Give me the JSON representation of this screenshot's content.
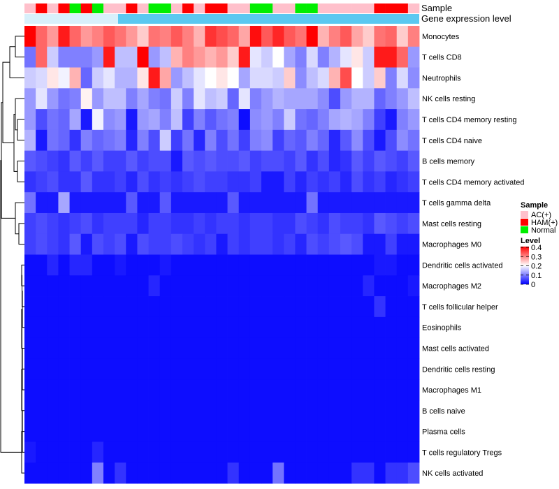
{
  "chart_data": {
    "type": "heatmap",
    "annotation_labels": {
      "sample": "Sample",
      "gene_expression": "Gene expression level"
    },
    "sample_groups": [
      "AC(+)",
      "HAM(+)",
      "AC(+)",
      "HAM(+)",
      "Normal",
      "HAM(+)",
      "Normal",
      "AC(+)",
      "AC(+)",
      "HAM(+)",
      "AC(+)",
      "Normal",
      "Normal",
      "AC(+)",
      "HAM(+)",
      "AC(+)",
      "HAM(+)",
      "HAM(+)",
      "AC(+)",
      "AC(+)",
      "Normal",
      "Normal",
      "AC(+)",
      "AC(+)",
      "Normal",
      "Normal",
      "AC(+)",
      "AC(+)",
      "AC(+)",
      "AC(+)",
      "AC(+)",
      "HAM(+)",
      "HAM(+)",
      "HAM(+)",
      "AC(+)"
    ],
    "rows": [
      {
        "name": "Monocytes",
        "values": [
          0.4,
          0.32,
          0.28,
          0.38,
          0.32,
          0.28,
          0.3,
          0.33,
          0.31,
          0.28,
          0.24,
          0.31,
          0.3,
          0.33,
          0.3,
          0.26,
          0.36,
          0.34,
          0.32,
          0.27,
          0.39,
          0.33,
          0.37,
          0.33,
          0.31,
          0.41,
          0.26,
          0.3,
          0.33,
          0.27,
          0.24,
          0.31,
          0.32,
          0.24,
          0.3
        ]
      },
      {
        "name": "T cells CD8",
        "values": [
          0.09,
          0.32,
          0.16,
          0.1,
          0.1,
          0.1,
          0.12,
          0.38,
          0.15,
          0.15,
          0.4,
          0.12,
          0.15,
          0.26,
          0.3,
          0.28,
          0.26,
          0.28,
          0.24,
          0.38,
          0.18,
          0.16,
          0.2,
          0.13,
          0.1,
          0.17,
          0.1,
          0.14,
          0.18,
          0.22,
          0.16,
          0.38,
          0.38,
          0.32,
          0.12
        ]
      },
      {
        "name": "Neutrophils",
        "values": [
          0.16,
          0.17,
          0.22,
          0.19,
          0.26,
          0.08,
          0.16,
          0.18,
          0.14,
          0.14,
          0.22,
          0.38,
          0.27,
          0.12,
          0.15,
          0.18,
          0.2,
          0.22,
          0.2,
          0.13,
          0.17,
          0.17,
          0.16,
          0.24,
          0.11,
          0.15,
          0.17,
          0.26,
          0.34,
          0.2,
          0.16,
          0.24,
          0.1,
          0.17,
          0.11
        ]
      },
      {
        "name": "NK cells resting",
        "values": [
          0.12,
          0.18,
          0.12,
          0.09,
          0.1,
          0.21,
          0.12,
          0.15,
          0.15,
          0.1,
          0.13,
          0.1,
          0.09,
          0.16,
          0.1,
          0.18,
          0.15,
          0.16,
          0.08,
          0.18,
          0.1,
          0.12,
          0.14,
          0.13,
          0.13,
          0.13,
          0.11,
          0.06,
          0.12,
          0.14,
          0.14,
          0.08,
          0.1,
          0.12,
          0.15
        ]
      },
      {
        "name": "T cells CD4 memory resting",
        "values": [
          0.12,
          0.06,
          0.09,
          0.08,
          0.13,
          0.02,
          0.19,
          0.11,
          0.12,
          0.02,
          0.12,
          0.13,
          0.1,
          0.15,
          0.05,
          0.1,
          0.07,
          0.09,
          0.1,
          0.01,
          0.11,
          0.12,
          0.1,
          0.16,
          0.09,
          0.08,
          0.1,
          0.13,
          0.14,
          0.13,
          0.1,
          0.05,
          0.02,
          0.1,
          0.12
        ]
      },
      {
        "name": "T cells CD4 naive",
        "values": [
          0.14,
          0.02,
          0.09,
          0.08,
          0.04,
          0.1,
          0.08,
          0.09,
          0.1,
          0.03,
          0.1,
          0.06,
          0.16,
          0.05,
          0.09,
          0.03,
          0.1,
          0.06,
          0.09,
          0.05,
          0.1,
          0.11,
          0.05,
          0.08,
          0.07,
          0.1,
          0.08,
          0.03,
          0.07,
          0.11,
          0.06,
          0.02,
          0.06,
          0.11,
          0.09
        ]
      },
      {
        "name": "B cells memory",
        "values": [
          0.07,
          0.06,
          0.05,
          0.04,
          0.07,
          0.05,
          0.07,
          0.05,
          0.05,
          0.07,
          0.05,
          0.06,
          0.06,
          0.02,
          0.07,
          0.06,
          0.07,
          0.06,
          0.06,
          0.07,
          0.05,
          0.06,
          0.06,
          0.05,
          0.07,
          0.04,
          0.06,
          0.03,
          0.04,
          0.07,
          0.05,
          0.07,
          0.06,
          0.05,
          0.07
        ]
      },
      {
        "name": "T cells CD4 memory activated",
        "values": [
          0.04,
          0.05,
          0.06,
          0.04,
          0.04,
          0.07,
          0.04,
          0.04,
          0.05,
          0.03,
          0.06,
          0.04,
          0.05,
          0.04,
          0.05,
          0.06,
          0.05,
          0.05,
          0.04,
          0.04,
          0.05,
          0.02,
          0.02,
          0.05,
          0.03,
          0.05,
          0.04,
          0.05,
          0.03,
          0.06,
          0.04,
          0.05,
          0.03,
          0.04,
          0.05
        ]
      },
      {
        "name": "T cells gamma delta",
        "values": [
          0.09,
          0.02,
          0.02,
          0.13,
          0.02,
          0.02,
          0.02,
          0.02,
          0.02,
          0.07,
          0.02,
          0.02,
          0.07,
          0.02,
          0.02,
          0.02,
          0.02,
          0.02,
          0.07,
          0.02,
          0.02,
          0.02,
          0.02,
          0.02,
          0.02,
          0.09,
          0.02,
          0.02,
          0.02,
          0.02,
          0.02,
          0.02,
          0.02,
          0.02,
          0.02
        ]
      },
      {
        "name": "Mast cells resting",
        "values": [
          0.05,
          0.06,
          0.05,
          0.04,
          0.05,
          0.06,
          0.04,
          0.05,
          0.05,
          0.05,
          0.03,
          0.05,
          0.05,
          0.04,
          0.04,
          0.05,
          0.04,
          0.05,
          0.05,
          0.04,
          0.05,
          0.05,
          0.04,
          0.04,
          0.06,
          0.05,
          0.04,
          0.06,
          0.05,
          0.05,
          0.04,
          0.07,
          0.06,
          0.05,
          0.06
        ]
      },
      {
        "name": "Macrophages M0",
        "values": [
          0.05,
          0.06,
          0.05,
          0.04,
          0.07,
          0.02,
          0.06,
          0.05,
          0.06,
          0.02,
          0.06,
          0.05,
          0.05,
          0.06,
          0.05,
          0.04,
          0.05,
          0.02,
          0.05,
          0.04,
          0.05,
          0.05,
          0.04,
          0.05,
          0.03,
          0.06,
          0.05,
          0.06,
          0.07,
          0.06,
          0.02,
          0.02,
          0.05,
          0.02,
          0.02
        ]
      },
      {
        "name": "Dendritic cells activated",
        "values": [
          0.01,
          0.01,
          0.03,
          0.01,
          0.03,
          0.03,
          0.01,
          0.01,
          0.02,
          0.01,
          0.01,
          0.01,
          0.02,
          0.01,
          0.01,
          0.01,
          0.01,
          0.01,
          0.01,
          0.01,
          0.01,
          0.01,
          0.01,
          0.01,
          0.01,
          0.01,
          0.01,
          0.01,
          0.01,
          0.01,
          0.01,
          0.02,
          0.02,
          0.01,
          0.01
        ]
      },
      {
        "name": "Macrophages M2",
        "values": [
          0.01,
          0.01,
          0.01,
          0.01,
          0.01,
          0.01,
          0.01,
          0.01,
          0.01,
          0.01,
          0.01,
          0.03,
          0.01,
          0.01,
          0.01,
          0.01,
          0.01,
          0.01,
          0.01,
          0.01,
          0.01,
          0.01,
          0.01,
          0.01,
          0.01,
          0.01,
          0.01,
          0.01,
          0.01,
          0.01,
          0.03,
          0.01,
          0.01,
          0.01,
          0.02
        ]
      },
      {
        "name": "T cells follicular helper",
        "values": [
          0.01,
          0.01,
          0.01,
          0.01,
          0.01,
          0.01,
          0.01,
          0.01,
          0.01,
          0.01,
          0.01,
          0.01,
          0.01,
          0.01,
          0.01,
          0.01,
          0.01,
          0.01,
          0.01,
          0.01,
          0.01,
          0.01,
          0.01,
          0.01,
          0.01,
          0.01,
          0.01,
          0.01,
          0.01,
          0.01,
          0.01,
          0.04,
          0.01,
          0.01,
          0.01
        ]
      },
      {
        "name": "Eosinophils",
        "values": [
          0.01,
          0.01,
          0.01,
          0.01,
          0.01,
          0.01,
          0.01,
          0.01,
          0.01,
          0.01,
          0.01,
          0.01,
          0.01,
          0.01,
          0.01,
          0.01,
          0.01,
          0.01,
          0.01,
          0.01,
          0.01,
          0.01,
          0.01,
          0.01,
          0.01,
          0.01,
          0.01,
          0.01,
          0.01,
          0.01,
          0.01,
          0.01,
          0.01,
          0.01,
          0.01
        ]
      },
      {
        "name": "Mast cells activated",
        "values": [
          0.01,
          0.01,
          0.01,
          0.01,
          0.01,
          0.01,
          0.01,
          0.01,
          0.01,
          0.01,
          0.01,
          0.01,
          0.01,
          0.01,
          0.01,
          0.01,
          0.01,
          0.01,
          0.01,
          0.01,
          0.01,
          0.01,
          0.01,
          0.01,
          0.01,
          0.01,
          0.01,
          0.01,
          0.01,
          0.01,
          0.01,
          0.01,
          0.01,
          0.01,
          0.01
        ]
      },
      {
        "name": "Dendritic cells resting",
        "values": [
          0.01,
          0.01,
          0.01,
          0.01,
          0.01,
          0.01,
          0.01,
          0.01,
          0.01,
          0.01,
          0.01,
          0.01,
          0.01,
          0.01,
          0.01,
          0.01,
          0.01,
          0.01,
          0.01,
          0.01,
          0.01,
          0.01,
          0.01,
          0.01,
          0.01,
          0.01,
          0.01,
          0.01,
          0.01,
          0.01,
          0.01,
          0.01,
          0.01,
          0.01,
          0.01
        ]
      },
      {
        "name": "Macrophages M1",
        "values": [
          0.01,
          0.01,
          0.01,
          0.01,
          0.01,
          0.01,
          0.01,
          0.01,
          0.01,
          0.01,
          0.01,
          0.01,
          0.01,
          0.01,
          0.01,
          0.01,
          0.01,
          0.01,
          0.01,
          0.01,
          0.01,
          0.01,
          0.01,
          0.01,
          0.01,
          0.01,
          0.01,
          0.01,
          0.01,
          0.01,
          0.01,
          0.01,
          0.01,
          0.01,
          0.01
        ]
      },
      {
        "name": "B cells naive",
        "values": [
          0.01,
          0.01,
          0.01,
          0.01,
          0.01,
          0.01,
          0.01,
          0.01,
          0.01,
          0.01,
          0.01,
          0.01,
          0.01,
          0.01,
          0.01,
          0.01,
          0.01,
          0.01,
          0.01,
          0.01,
          0.01,
          0.01,
          0.01,
          0.01,
          0.01,
          0.01,
          0.01,
          0.01,
          0.01,
          0.01,
          0.01,
          0.01,
          0.01,
          0.01,
          0.01
        ]
      },
      {
        "name": "Plasma cells",
        "values": [
          0.01,
          0.01,
          0.01,
          0.01,
          0.01,
          0.01,
          0.01,
          0.01,
          0.01,
          0.01,
          0.01,
          0.01,
          0.01,
          0.01,
          0.01,
          0.01,
          0.01,
          0.01,
          0.01,
          0.01,
          0.01,
          0.01,
          0.01,
          0.01,
          0.01,
          0.01,
          0.01,
          0.01,
          0.01,
          0.01,
          0.01,
          0.01,
          0.01,
          0.01,
          0.01
        ]
      },
      {
        "name": "T cells regulatory  Tregs",
        "values": [
          0.02,
          0.01,
          0.01,
          0.01,
          0.01,
          0.01,
          0.03,
          0.01,
          0.01,
          0.01,
          0.01,
          0.01,
          0.01,
          0.01,
          0.01,
          0.01,
          0.01,
          0.01,
          0.01,
          0.01,
          0.01,
          0.01,
          0.01,
          0.01,
          0.01,
          0.01,
          0.01,
          0.01,
          0.01,
          0.01,
          0.01,
          0.01,
          0.01,
          0.01,
          0.01
        ]
      },
      {
        "name": "NK cells activated",
        "values": [
          0.01,
          0.01,
          0.01,
          0.01,
          0.01,
          0.01,
          0.1,
          0.01,
          0.04,
          0.01,
          0.01,
          0.01,
          0.01,
          0.01,
          0.01,
          0.01,
          0.01,
          0.01,
          0.04,
          0.01,
          0.01,
          0.01,
          0.09,
          0.01,
          0.01,
          0.01,
          0.01,
          0.01,
          0.01,
          0.04,
          0.04,
          0.01,
          0.04,
          0.04,
          0.06
        ]
      }
    ],
    "legend": {
      "sample_title": "Sample",
      "sample_entries": [
        {
          "label": "AC(+)",
          "color": "#ffc0cb"
        },
        {
          "label": "HAM(+)",
          "color": "#ff0000"
        },
        {
          "label": "Normal",
          "color": "#00ee00"
        }
      ],
      "level_title": "Level",
      "level_ticks": [
        "0.4",
        "0.3",
        "0.2",
        "0.1",
        "0"
      ],
      "level_range": [
        0,
        0.4
      ]
    },
    "colors": {
      "low": "#0000ff",
      "mid": "#ffffff",
      "high": "#ff0000",
      "gene_expression_bar": "#5bc8f0",
      "gene_expression_low": "#d8f0fb",
      "dendrogram": "#000000"
    }
  }
}
